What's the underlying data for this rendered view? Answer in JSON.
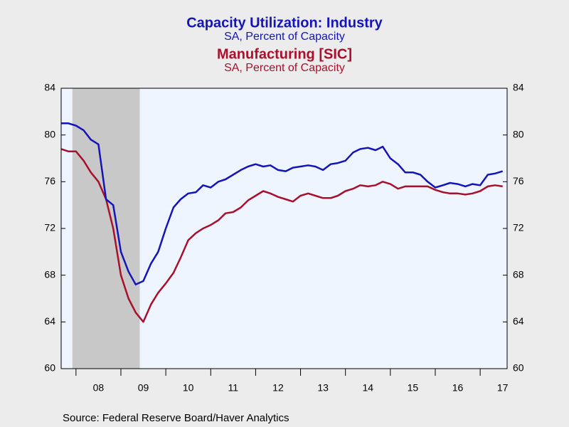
{
  "chart_data": {
    "type": "line",
    "series": [
      {
        "name": "Capacity Utilization: Industry",
        "unit": "SA, Percent of Capacity",
        "color": "#1414b8",
        "values": [
          81.0,
          81.0,
          80.8,
          80.4,
          79.6,
          79.2,
          74.5,
          74.0,
          70.0,
          68.3,
          67.2,
          67.5,
          69.0,
          70.0,
          72.0,
          73.8,
          74.5,
          75.0,
          75.1,
          75.7,
          75.5,
          76.0,
          76.2,
          76.6,
          77.0,
          77.3,
          77.5,
          77.3,
          77.4,
          77.0,
          76.9,
          77.2,
          77.3,
          77.4,
          77.3,
          77.0,
          77.5,
          77.6,
          77.8,
          78.5,
          78.8,
          78.9,
          78.7,
          79.0,
          78.0,
          77.5,
          76.8,
          76.8,
          76.6,
          76.0,
          75.5,
          75.7,
          75.9,
          75.8,
          75.6,
          75.8,
          75.7,
          76.6,
          76.7,
          76.9
        ]
      },
      {
        "name": "Manufacturing [SIC]",
        "unit": "SA, Percent of Capacity",
        "color": "#a8102c",
        "values": [
          78.8,
          78.6,
          78.6,
          77.8,
          76.8,
          76.0,
          74.5,
          72.0,
          68.0,
          66.0,
          64.8,
          64.0,
          65.5,
          66.5,
          67.3,
          68.2,
          69.5,
          71.0,
          71.6,
          72.0,
          72.3,
          72.7,
          73.3,
          73.4,
          73.8,
          74.4,
          74.8,
          75.2,
          75.0,
          74.7,
          74.5,
          74.3,
          74.8,
          75.0,
          74.8,
          74.6,
          74.6,
          74.8,
          75.2,
          75.4,
          75.7,
          75.6,
          75.7,
          76.0,
          75.8,
          75.4,
          75.6,
          75.6,
          75.6,
          75.6,
          75.3,
          75.1,
          75.0,
          75.0,
          74.9,
          75.0,
          75.2,
          75.6,
          75.7,
          75.6
        ]
      }
    ],
    "x": [
      2007.67,
      2007.83,
      2008.0,
      2008.17,
      2008.33,
      2008.5,
      2008.67,
      2008.83,
      2009.0,
      2009.17,
      2009.33,
      2009.5,
      2009.67,
      2009.83,
      2010.0,
      2010.17,
      2010.33,
      2010.5,
      2010.67,
      2010.83,
      2011.0,
      2011.17,
      2011.33,
      2011.5,
      2011.67,
      2011.83,
      2012.0,
      2012.17,
      2012.33,
      2012.5,
      2012.67,
      2012.83,
      2013.0,
      2013.17,
      2013.33,
      2013.5,
      2013.67,
      2013.83,
      2014.0,
      2014.17,
      2014.33,
      2014.5,
      2014.67,
      2014.83,
      2015.0,
      2015.17,
      2015.33,
      2015.5,
      2015.67,
      2015.83,
      2016.0,
      2016.17,
      2016.33,
      2016.5,
      2016.67,
      2016.83,
      2017.0,
      2017.17,
      2017.33,
      2017.5
    ],
    "xlim": [
      2007.67,
      2017.6
    ],
    "xticks": [
      {
        "value": 2008.5,
        "label": "08"
      },
      {
        "value": 2009.5,
        "label": "09"
      },
      {
        "value": 2010.5,
        "label": "10"
      },
      {
        "value": 2011.5,
        "label": "11"
      },
      {
        "value": 2012.5,
        "label": "12"
      },
      {
        "value": 2013.5,
        "label": "13"
      },
      {
        "value": 2014.5,
        "label": "14"
      },
      {
        "value": 2015.5,
        "label": "15"
      },
      {
        "value": 2016.5,
        "label": "16"
      },
      {
        "value": 2017.5,
        "label": "17"
      }
    ],
    "xticks_minor": [
      2008,
      2009,
      2010,
      2011,
      2012,
      2013,
      2014,
      2015,
      2016,
      2017
    ],
    "recession": [
      2007.92,
      2009.42
    ],
    "ylim": [
      60,
      84
    ],
    "yticks": [
      60,
      64,
      68,
      72,
      76,
      80,
      84
    ],
    "y2lim": [
      60,
      84
    ],
    "y2ticks": [
      60,
      64,
      68,
      72,
      76,
      80,
      84
    ],
    "source": "Source:  Federal Reserve Board/Haver Analytics"
  }
}
